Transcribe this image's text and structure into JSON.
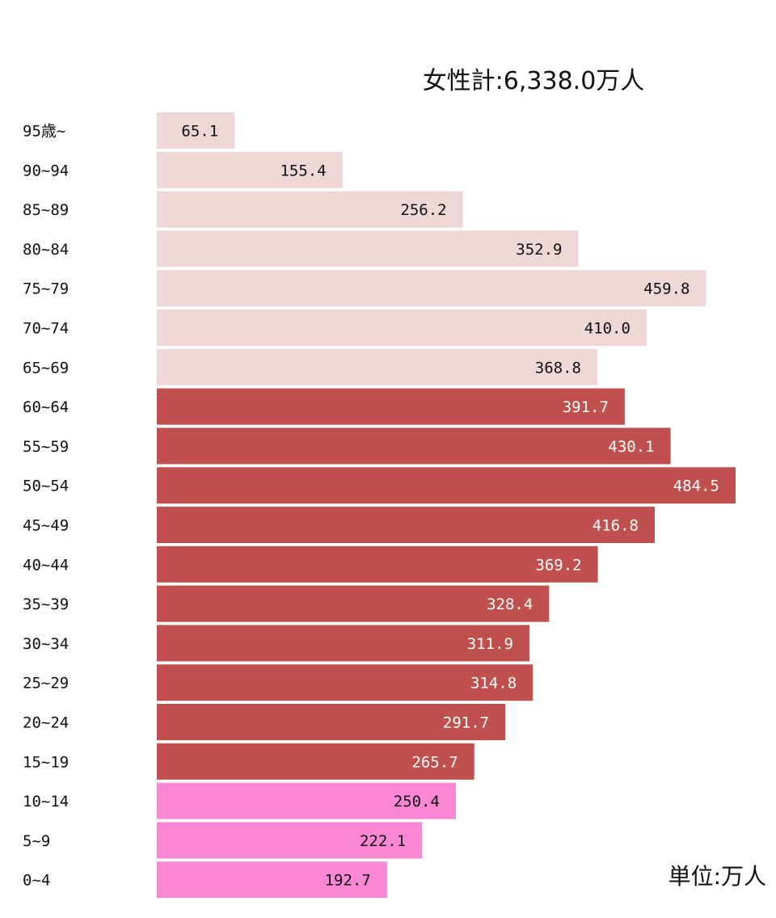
{
  "chart_data": {
    "type": "bar",
    "orientation": "horizontal",
    "title": "女性計:6,338.0万人",
    "unit_label": "単位:万人",
    "categories": [
      "95歳~",
      "90~94",
      "85~89",
      "80~84",
      "75~79",
      "70~74",
      "65~69",
      "60~64",
      "55~59",
      "50~54",
      "45~49",
      "40~44",
      "35~39",
      "30~34",
      "25~29",
      "20~24",
      "15~19",
      "10~14",
      "5~9",
      "0~4"
    ],
    "values": [
      65.1,
      155.4,
      256.2,
      352.9,
      459.8,
      410.0,
      368.8,
      391.7,
      430.1,
      484.5,
      416.8,
      369.2,
      328.4,
      311.9,
      314.8,
      291.7,
      265.7,
      250.4,
      222.1,
      192.7
    ],
    "value_labels": [
      "65.1",
      "155.4",
      "256.2",
      "352.9",
      "459.8",
      "410.0",
      "368.8",
      "391.7",
      "430.1",
      "484.5",
      "416.8",
      "369.2",
      "328.4",
      "311.9",
      "314.8",
      "291.7",
      "265.7",
      "250.4",
      "222.1",
      "192.7"
    ],
    "groups": [
      "elderly",
      "elderly",
      "elderly",
      "elderly",
      "elderly",
      "elderly",
      "elderly",
      "working",
      "working",
      "working",
      "working",
      "working",
      "working",
      "working",
      "working",
      "working",
      "working",
      "youth",
      "youth",
      "youth"
    ],
    "colors": {
      "elderly": "#efd6d7",
      "working": "#c0504d",
      "youth": "#f987d4"
    },
    "label_colors": {
      "elderly": "#111111",
      "working": "#ffffff",
      "youth": "#111111"
    },
    "xlim": [
      0,
      484.5
    ],
    "grid": false,
    "legend": "none"
  }
}
